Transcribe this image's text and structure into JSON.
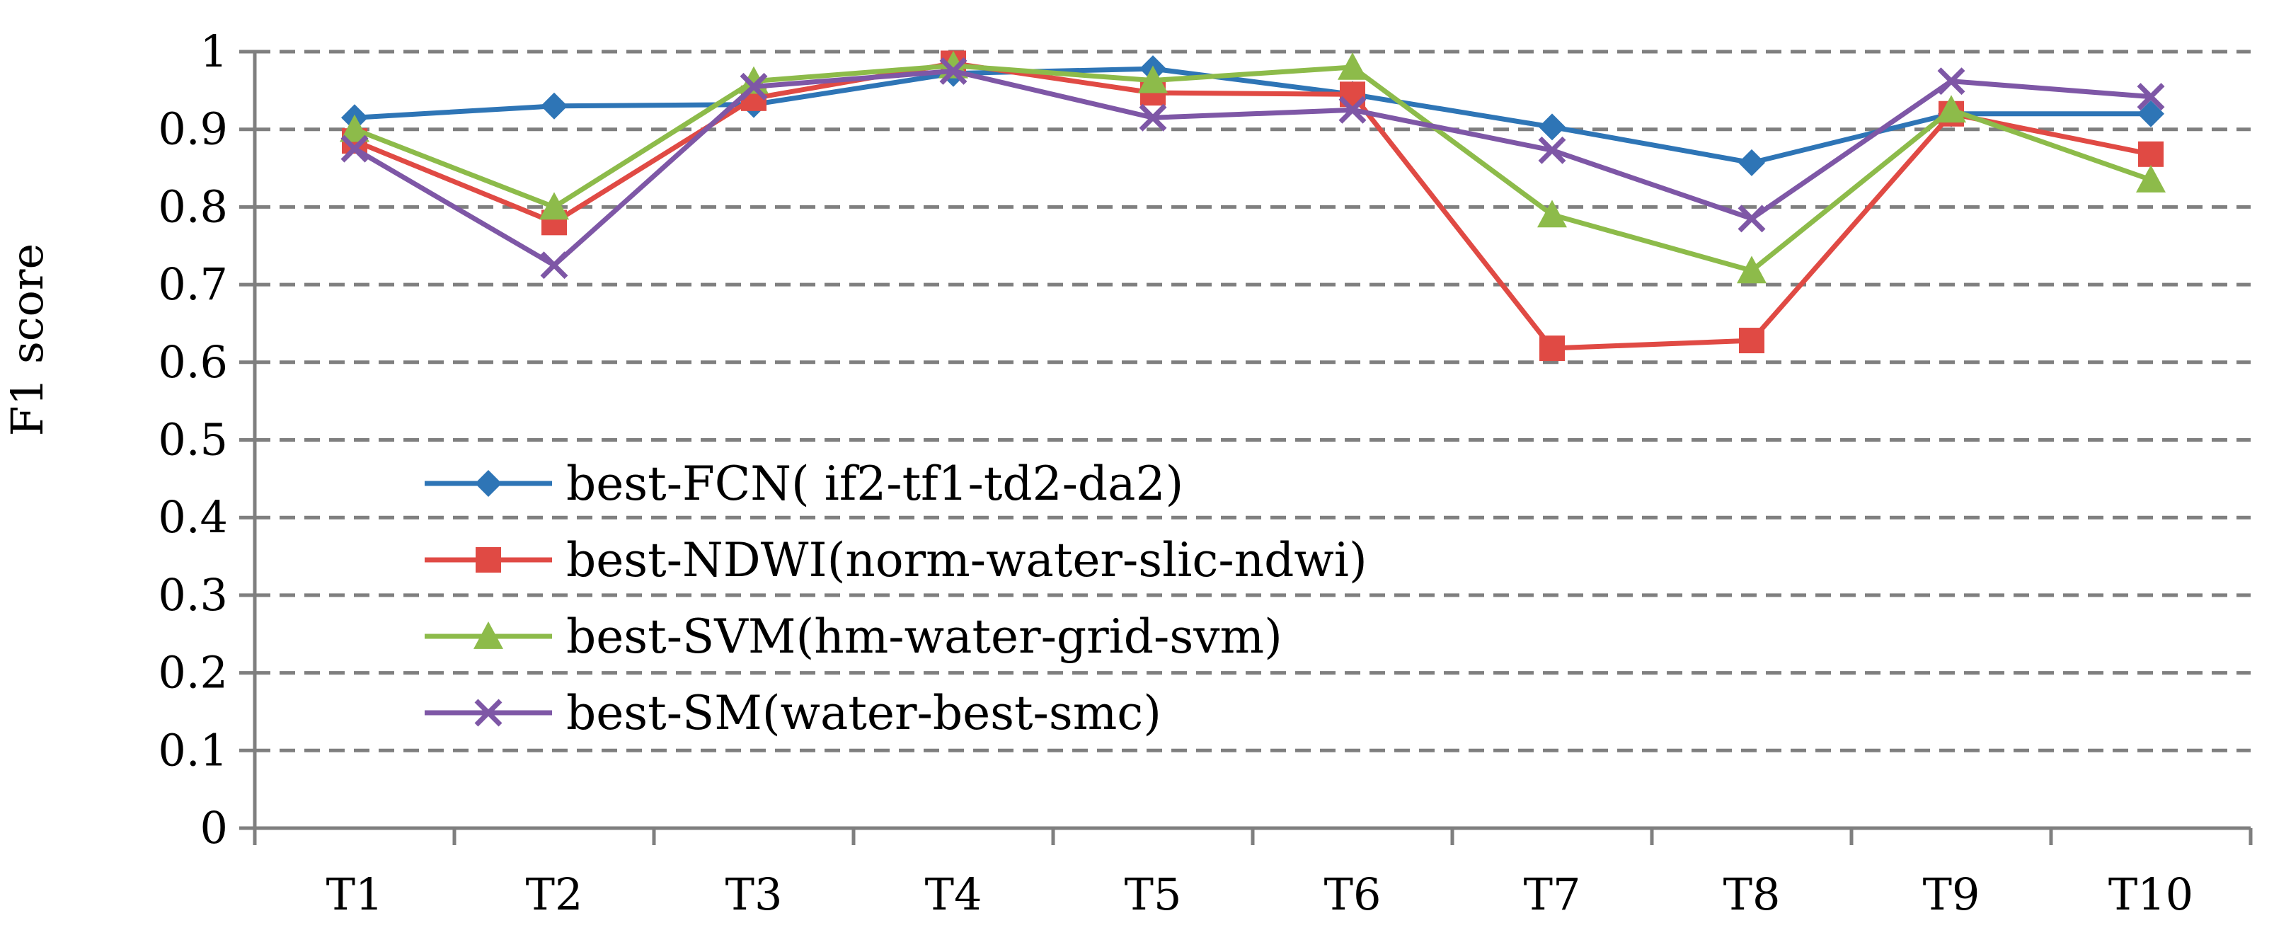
{
  "chart_data": {
    "type": "line",
    "title": "",
    "xlabel": "",
    "ylabel": "F1 score",
    "ylim": [
      0,
      1
    ],
    "yticks": [
      "0",
      "0.1",
      "0.2",
      "0.3",
      "0.4",
      "0.5",
      "0.6",
      "0.7",
      "0.8",
      "0.9",
      "1"
    ],
    "grid": "horizontal dashed",
    "legend_position": "lower-left",
    "categories": [
      "T1",
      "T2",
      "T3",
      "T4",
      "T5",
      "T6",
      "T7",
      "T8",
      "T9",
      "T10"
    ],
    "series": [
      {
        "name": "best-FCN( if2-tf1-td2-da2)",
        "color": "#2e75b6",
        "marker": "diamond",
        "values": [
          0.915,
          0.93,
          0.932,
          0.972,
          0.978,
          0.945,
          0.903,
          0.857,
          0.92,
          0.92
        ]
      },
      {
        "name": "best-NDWI(norm-water-slic-ndwi)",
        "color": "#e04a44",
        "marker": "square",
        "values": [
          0.885,
          0.78,
          0.94,
          0.985,
          0.947,
          0.945,
          0.618,
          0.628,
          0.92,
          0.868
        ]
      },
      {
        "name": "best-SVM(hm-water-grid-svm)",
        "color": "#8dbb4a",
        "marker": "triangle",
        "values": [
          0.9,
          0.8,
          0.962,
          0.982,
          0.963,
          0.98,
          0.79,
          0.718,
          0.925,
          0.835
        ]
      },
      {
        "name": "best-SM(water-best-smc)",
        "color": "#7e57a6",
        "marker": "cross",
        "values": [
          0.875,
          0.725,
          0.955,
          0.975,
          0.915,
          0.925,
          0.873,
          0.785,
          0.962,
          0.942
        ]
      }
    ]
  }
}
